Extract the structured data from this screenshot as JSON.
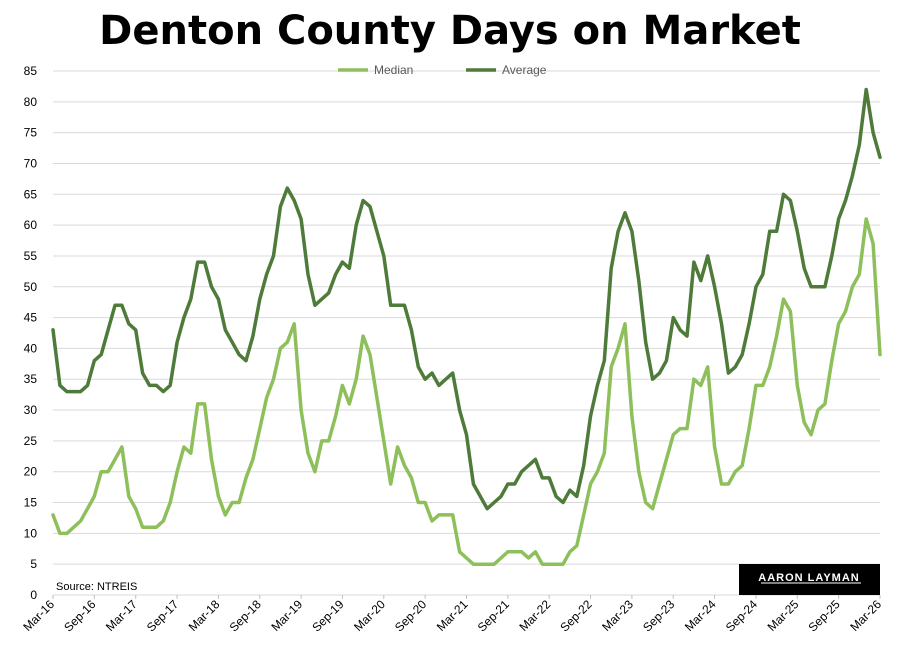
{
  "chart_data": {
    "type": "line",
    "title": "Denton County Days on Market",
    "source": "Source: NTREIS",
    "logo": "AARON LAYMAN",
    "ylim": [
      0,
      85
    ],
    "yticks": [
      "0",
      "5",
      "10",
      "15",
      "20",
      "25",
      "30",
      "35",
      "40",
      "45",
      "50",
      "55",
      "60",
      "65",
      "70",
      "75",
      "80",
      "85"
    ],
    "xtick_labels": [
      "Mar-16",
      "Sep-16",
      "Mar-17",
      "Sep-17",
      "Mar-18",
      "Sep-18",
      "Mar-19",
      "Sep-19",
      "Mar-20",
      "Sep-20",
      "Mar-21",
      "Sep-21",
      "Mar-22",
      "Sep-22",
      "Mar-23",
      "Sep-23",
      "Mar-24",
      "Sep-24",
      "Mar-25",
      "Sep-25",
      "Mar-26"
    ],
    "grid": "horizontal",
    "legend_position": "top-center",
    "series": [
      {
        "name": "Median",
        "color": "#8dbf5b",
        "values": [
          13,
          10,
          10,
          11,
          12,
          14,
          16,
          20,
          20,
          22,
          24,
          16,
          14,
          11,
          11,
          11,
          12,
          15,
          20,
          24,
          23,
          31,
          31,
          22,
          16,
          13,
          15,
          15,
          19,
          22,
          27,
          32,
          35,
          40,
          41,
          44,
          30,
          23,
          20,
          25,
          25,
          29,
          34,
          31,
          35,
          42,
          39,
          32,
          25,
          18,
          24,
          21,
          19,
          15,
          15,
          12,
          13,
          13,
          13,
          7,
          6,
          5,
          5,
          5,
          5,
          6,
          7,
          7,
          7,
          6,
          7,
          5,
          5,
          5,
          5,
          7,
          8,
          13,
          18,
          20,
          23,
          37,
          40,
          44,
          29,
          20,
          15,
          14,
          18,
          22,
          26,
          27,
          27,
          35,
          34,
          37,
          24,
          18,
          18,
          20,
          21,
          27,
          34,
          34,
          37,
          42,
          48,
          46,
          34,
          28,
          26,
          30,
          31,
          38,
          44,
          46,
          50,
          52,
          61,
          57,
          39
        ]
      },
      {
        "name": "Average",
        "color": "#4e7a3a",
        "values": [
          43,
          34,
          33,
          33,
          33,
          34,
          38,
          39,
          43,
          47,
          47,
          44,
          43,
          36,
          34,
          34,
          33,
          34,
          41,
          45,
          48,
          54,
          54,
          50,
          48,
          43,
          41,
          39,
          38,
          42,
          48,
          52,
          55,
          63,
          66,
          64,
          61,
          52,
          47,
          48,
          49,
          52,
          54,
          53,
          60,
          64,
          63,
          59,
          55,
          47,
          47,
          47,
          43,
          37,
          35,
          36,
          34,
          35,
          36,
          30,
          26,
          18,
          16,
          14,
          15,
          16,
          18,
          18,
          20,
          21,
          22,
          19,
          19,
          16,
          15,
          17,
          16,
          21,
          29,
          34,
          38,
          53,
          59,
          62,
          59,
          51,
          41,
          35,
          36,
          38,
          45,
          43,
          42,
          54,
          51,
          55,
          50,
          44,
          36,
          37,
          39,
          44,
          50,
          52,
          59,
          59,
          65,
          64,
          59,
          53,
          50,
          50,
          50,
          55,
          61,
          64,
          68,
          73,
          82,
          75,
          71
        ]
      }
    ]
  }
}
